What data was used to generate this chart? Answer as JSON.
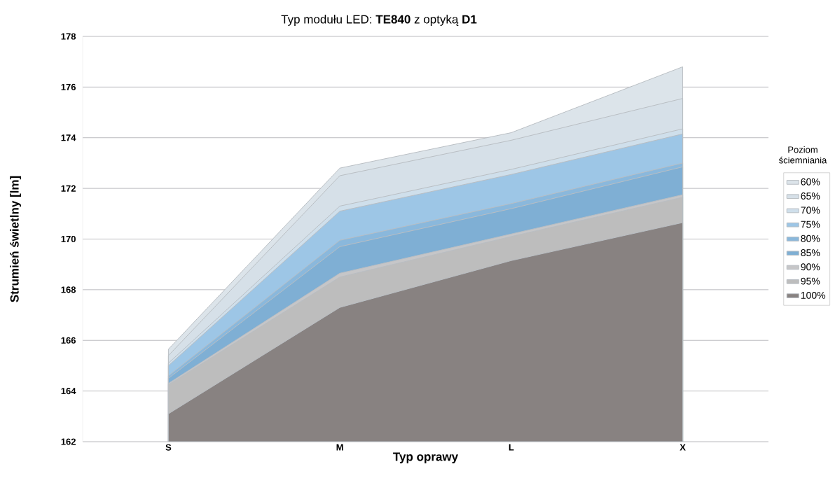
{
  "chart_data": {
    "type": "area",
    "title": "Typ modułu LED: **TE840** z optyką **D1**",
    "xlabel": "Typ oprawy",
    "ylabel": "Strumień świetlny [lm]",
    "legend_title": "Poziom ściemniania",
    "categories": [
      "S",
      "M",
      "L",
      "X"
    ],
    "series": [
      {
        "name": "60%",
        "color": "#dce4ea",
        "values": [
          165.65,
          172.8,
          174.2,
          176.8
        ]
      },
      {
        "name": "65%",
        "color": "#d6e0e8",
        "values": [
          165.4,
          172.5,
          173.9,
          175.55
        ]
      },
      {
        "name": "70%",
        "color": "#cfdfeb",
        "values": [
          165.1,
          171.3,
          172.75,
          174.35
        ]
      },
      {
        "name": "75%",
        "color": "#9dc6e6",
        "values": [
          165.0,
          171.1,
          172.55,
          174.15
        ]
      },
      {
        "name": "80%",
        "color": "#8ab8dc",
        "values": [
          164.6,
          169.95,
          171.4,
          173.0
        ]
      },
      {
        "name": "85%",
        "color": "#7fafd4",
        "values": [
          164.5,
          169.7,
          171.2,
          172.85
        ]
      },
      {
        "name": "90%",
        "color": "#c6c6c8",
        "values": [
          164.3,
          168.65,
          170.2,
          171.75
        ]
      },
      {
        "name": "95%",
        "color": "#bdbdbd",
        "values": [
          164.25,
          168.5,
          170.1,
          171.65
        ]
      },
      {
        "name": "100%",
        "color": "#888281",
        "values": [
          163.1,
          167.3,
          169.15,
          170.65
        ]
      }
    ],
    "ylim": [
      162,
      178
    ],
    "yticks": [
      162,
      164,
      166,
      168,
      170,
      172,
      174,
      176,
      178
    ],
    "grid": "y",
    "legend": "right"
  }
}
